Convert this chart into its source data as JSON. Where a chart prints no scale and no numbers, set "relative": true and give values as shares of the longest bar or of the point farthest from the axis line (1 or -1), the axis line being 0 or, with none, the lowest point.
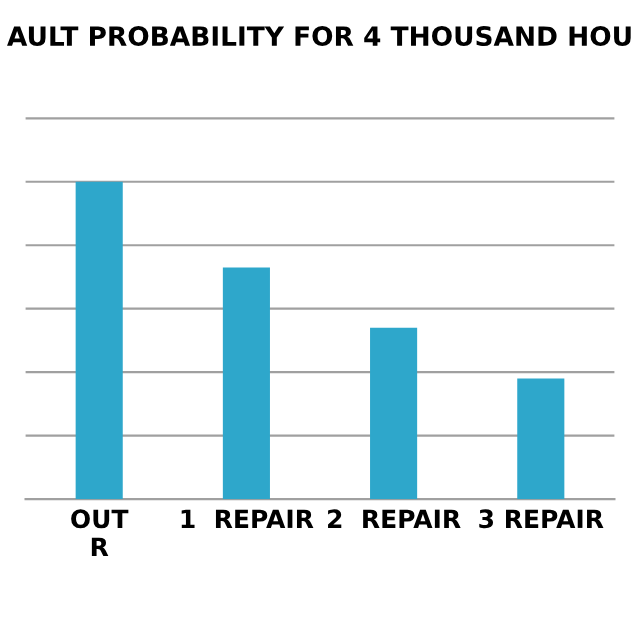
{
  "chart_data": {
    "type": "bar",
    "title": "AULT PROBABILITY FOR 4 THOUSAND HOU",
    "categories": [
      "OUT\nR",
      "1  REPAIR",
      "2  REPAIR",
      "3 REPAIR"
    ],
    "values": [
      1,
      0.73,
      0.54,
      0.38
    ],
    "color": "#2ea7cb",
    "relative": true,
    "grid": "y",
    "legend": false
  }
}
